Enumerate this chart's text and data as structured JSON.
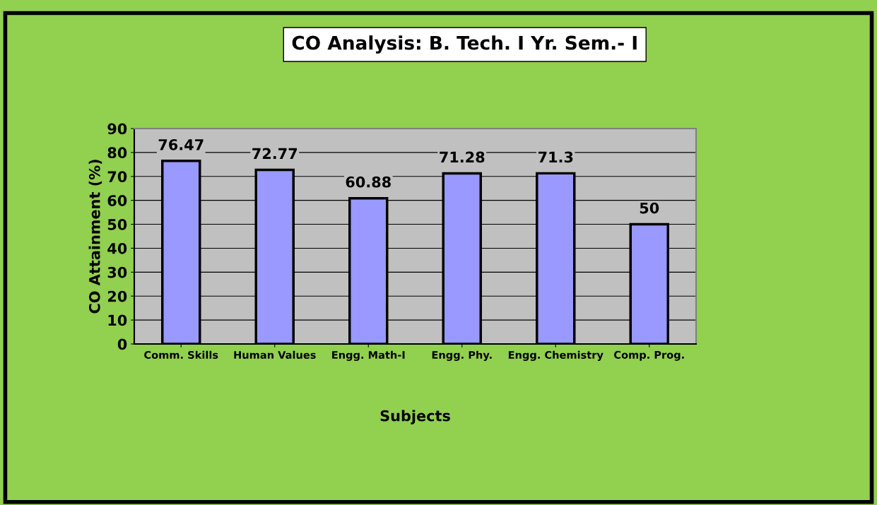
{
  "chart_data": {
    "type": "bar",
    "title": "CO Analysis: B. Tech. I Yr. Sem.- I",
    "xlabel": "Subjects",
    "ylabel": "CO Attainment (%)",
    "categories": [
      "Comm. Skills",
      "Human Values",
      "Engg. Math-I",
      "Engg. Phy.",
      "Engg. Chemistry",
      "Comp. Prog."
    ],
    "values": [
      76.47,
      72.77,
      60.88,
      71.28,
      71.3,
      50
    ],
    "value_labels": [
      "76.47",
      "72.77",
      "60.88",
      "71.28",
      "71.3",
      "50"
    ],
    "color": "#9999ff",
    "ylim": [
      0,
      90
    ],
    "yticks": [
      0,
      10,
      20,
      30,
      40,
      50,
      60,
      70,
      80,
      90
    ],
    "grid": "y",
    "legend": false
  }
}
